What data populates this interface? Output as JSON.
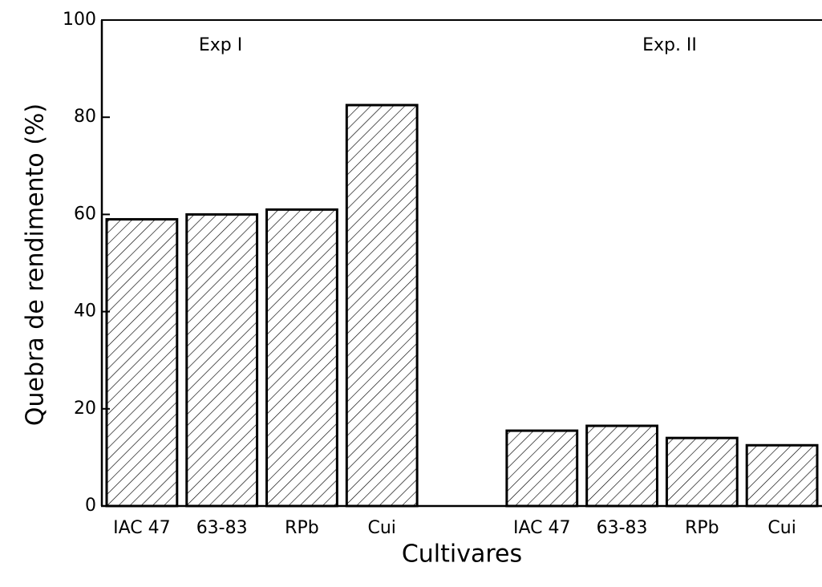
{
  "chart_data": {
    "type": "bar",
    "annotations": [
      "Exp I",
      "Exp. II"
    ],
    "xlabel": "Cultivares",
    "ylabel": "Quebra de rendimento (%)",
    "categories": [
      "IAC 47",
      "63-83",
      "RPb",
      "Cui",
      null,
      "IAC 47",
      "63-83",
      "RPb",
      "Cui"
    ],
    "values": [
      59,
      60,
      61,
      82.5,
      null,
      15.5,
      16.5,
      14,
      12.5
    ],
    "color": "#000000",
    "ylim": [
      0,
      100
    ],
    "yticks": [
      0,
      20,
      40,
      60,
      80,
      100
    ]
  }
}
